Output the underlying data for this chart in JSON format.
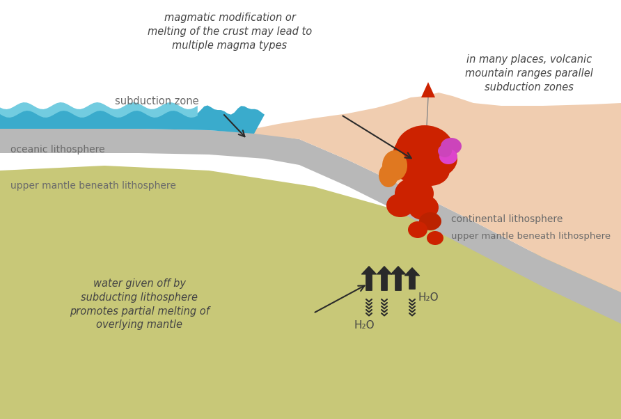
{
  "bg_color": "#ffffff",
  "mantle_color": "#c8c878",
  "plate_color": "#b8b8b8",
  "ocean_dark": "#3aabcc",
  "ocean_light": "#72cce0",
  "continental_color": "#f0cdb0",
  "volcanic_red": "#cc2200",
  "magma_orange": "#e07820",
  "magma_purple": "#cc44bb",
  "text_color": "#6a6a6a",
  "italic_color": "#444444",
  "arrow_color": "#2a2a2a",
  "annotations": {
    "subduction_zone": "subduction zone",
    "oceanic_litho": "oceanic lithosphere",
    "upper_mantle_left": "upper mantle beneath lithosphere",
    "continental_litho": "continental lithosphere",
    "upper_mantle_right": "upper mantle beneath lithosphere",
    "magmatic_mod": "magmatic modification or\nmelting of the crust may lead to\nmultiple magma types",
    "volcanic_ranges": "in many places, volcanic\nmountain ranges parallel\nsubduction zones",
    "water_text": "water given off by\nsubducting lithosphere\npromotes partial melting of\noverlying mantle",
    "h2o_left": "H₂O",
    "h2o_right": "H₂O"
  }
}
